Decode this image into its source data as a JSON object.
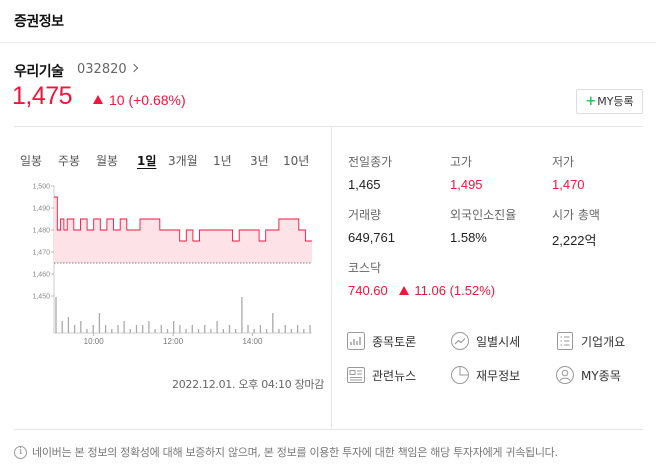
{
  "header": {
    "title": "증권정보"
  },
  "stock": {
    "name": "우리기술",
    "code": "032820",
    "price": "1,475",
    "change": "10 (+0.68%)",
    "my_button": "MY등록"
  },
  "tabs": [
    {
      "label": "일봉"
    },
    {
      "label": "주봉"
    },
    {
      "label": "월봉"
    },
    {
      "label": "1일"
    },
    {
      "label": "3개월"
    },
    {
      "label": "1년"
    },
    {
      "label": "3년"
    },
    {
      "label": "10년"
    }
  ],
  "active_tab": "1일",
  "chart_data": {
    "type": "line",
    "x_tick_labels": [
      "10:00",
      "12:00",
      "14:00"
    ],
    "y_tick_labels": [
      "1,500",
      "1,490",
      "1,480",
      "1,470",
      "1,460",
      "1,450"
    ],
    "ylim": [
      1450,
      1500
    ],
    "prev_close": 1465,
    "x_range": [
      "09:00",
      "15:30"
    ],
    "series": [
      {
        "x": [
          "09:00",
          "09:05",
          "09:10",
          "09:15",
          "09:20",
          "09:30",
          "09:40",
          "09:50",
          "10:00",
          "10:10",
          "10:20",
          "10:30",
          "10:40",
          "10:50",
          "11:00",
          "11:10",
          "11:20",
          "11:30",
          "11:40",
          "11:50",
          "12:00",
          "12:10",
          "12:20",
          "12:30",
          "12:40",
          "12:50",
          "13:00",
          "13:10",
          "13:20",
          "13:30",
          "13:40",
          "13:50",
          "14:00",
          "14:10",
          "14:20",
          "14:30",
          "14:40",
          "14:50",
          "15:00",
          "15:10",
          "15:20",
          "15:30"
        ],
        "values": [
          1495,
          1480,
          1485,
          1480,
          1485,
          1480,
          1485,
          1480,
          1485,
          1480,
          1485,
          1480,
          1485,
          1480,
          1480,
          1485,
          1485,
          1485,
          1480,
          1480,
          1480,
          1475,
          1480,
          1475,
          1480,
          1480,
          1480,
          1480,
          1480,
          1475,
          1480,
          1480,
          1480,
          1475,
          1480,
          1480,
          1485,
          1485,
          1485,
          1480,
          1475,
          1475
        ]
      }
    ],
    "volume": [
      9,
      3,
      4,
      2,
      3,
      1,
      2,
      5,
      2,
      1,
      2,
      3,
      1,
      2,
      2,
      3,
      1,
      2,
      1,
      3,
      2,
      1,
      2,
      1,
      2,
      1,
      3,
      1,
      2,
      1,
      9,
      2,
      1,
      2,
      1,
      5,
      1,
      2,
      1,
      2,
      1,
      2
    ],
    "colors": {
      "line": "#f1143b",
      "area": "#fde3e7",
      "prev_close": "#555555",
      "volume": "#aaaaaa"
    }
  },
  "timestamp": "2022.12.01. 오후 04:10 장마감",
  "stats": {
    "prev_close_label": "전일종가",
    "prev_close": "1,465",
    "high_label": "고가",
    "high": "1,495",
    "low_label": "저가",
    "low": "1,470",
    "volume_label": "거래량",
    "volume": "649,761",
    "foreign_label": "외국인소진율",
    "foreign": "1.58%",
    "mcap_label": "시가 총액",
    "mcap": "2,222억",
    "index_label": "코스닥",
    "index_value": "740.60",
    "index_change": "11.06 (1.52%)"
  },
  "links": [
    {
      "label": "종목토론",
      "icon": "discussion-icon"
    },
    {
      "label": "일별시세",
      "icon": "trend-icon"
    },
    {
      "label": "기업개요",
      "icon": "list-icon"
    },
    {
      "label": "관련뉴스",
      "icon": "news-icon"
    },
    {
      "label": "재무정보",
      "icon": "pie-icon"
    },
    {
      "label": "MY종목",
      "icon": "user-icon"
    }
  ],
  "footer": {
    "info_symbol": "i",
    "text": "네이버는 본 정보의 정확성에 대해 보증하지 않으며, 본 정보를 이용한 투자에 대한 책임은 해당 투자자에게 귀속됩니다."
  },
  "theme": {
    "up_color": "#f1143b",
    "accent_green": "#19ce60"
  }
}
